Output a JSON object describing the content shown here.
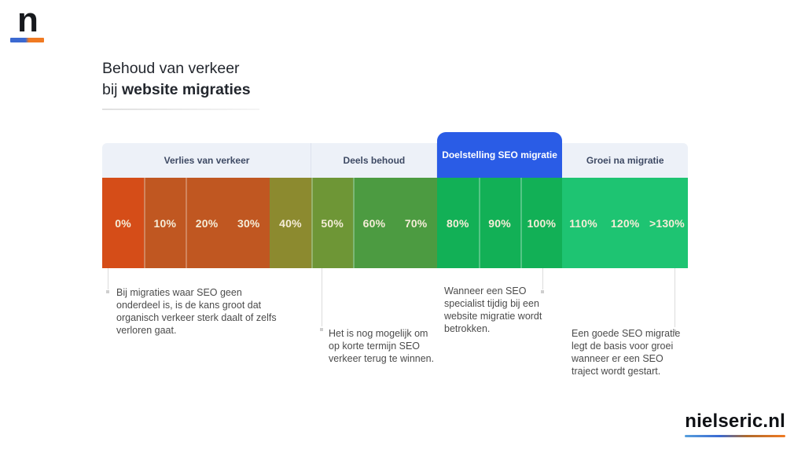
{
  "logo": {
    "letter": "n",
    "underline_colors": [
      "#3b69d1",
      "#f07a22"
    ]
  },
  "title": {
    "line1": "Behoud van verkeer",
    "line2_prefix": "bij ",
    "line2_bold": "website migraties"
  },
  "chart_data": {
    "type": "bar",
    "title": "Behoud van verkeer bij website migraties",
    "categories": [
      "0%",
      "10%",
      "20%",
      "30%",
      "40%",
      "50%",
      "60%",
      "70%",
      "80%",
      "90%",
      "100%",
      "110%",
      "120%",
      ">130%"
    ],
    "groups": [
      {
        "label": "Verlies van verkeer",
        "span": 5,
        "highlighted": false
      },
      {
        "label": "Deels behoud",
        "span": 3,
        "highlighted": false
      },
      {
        "label": "Doelstelling SEO migratie",
        "span": 3,
        "highlighted": true
      },
      {
        "label": "Groei na migratie",
        "span": 3,
        "highlighted": false
      }
    ],
    "segments": [
      {
        "label": "0%",
        "color": "#d54d18",
        "divider": false
      },
      {
        "label": "10%",
        "color": "#c05721",
        "divider": true
      },
      {
        "label": "20%",
        "color": "#c05721",
        "divider": true
      },
      {
        "label": "30%",
        "color": "#c05721",
        "divider": false
      },
      {
        "label": "40%",
        "color": "#8c8a2f",
        "divider": false
      },
      {
        "label": "50%",
        "color": "#6e9636",
        "divider": true
      },
      {
        "label": "60%",
        "color": "#4c9b41",
        "divider": true
      },
      {
        "label": "70%",
        "color": "#4c9b41",
        "divider": false
      },
      {
        "label": "80%",
        "color": "#12b056",
        "divider": false
      },
      {
        "label": "90%",
        "color": "#12b056",
        "divider": true
      },
      {
        "label": "100%",
        "color": "#12b056",
        "divider": true
      },
      {
        "label": "110%",
        "color": "#1ec472",
        "divider": false
      },
      {
        "label": "120%",
        "color": "#1ec472",
        "divider": false
      },
      {
        "label": ">130%",
        "color": "#1ec472",
        "divider": false
      }
    ],
    "colors": {
      "highlight_tab": "#2a5ce6",
      "header_band": "#edf1f8",
      "header_text": "#3e4a64",
      "segment_label": "#f5edd8"
    },
    "legend_position": "none",
    "grid": false
  },
  "annotations": [
    {
      "text": "Bij migraties waar SEO  geen onderdeel is, is de kans groot dat organisch verkeer sterk daalt of zelfs verloren gaat."
    },
    {
      "text": "Het is nog mogelijk om op korte termijn SEO verkeer terug te winnen."
    },
    {
      "text": "Wanneer een SEO specialist tijdig bij een website migratie wordt betrokken."
    },
    {
      "text": "Een goede SEO migratie legt de basis voor groei wanneer er een SEO traject wordt gestart."
    }
  ],
  "footer": {
    "brand": "nielseric.nl"
  }
}
